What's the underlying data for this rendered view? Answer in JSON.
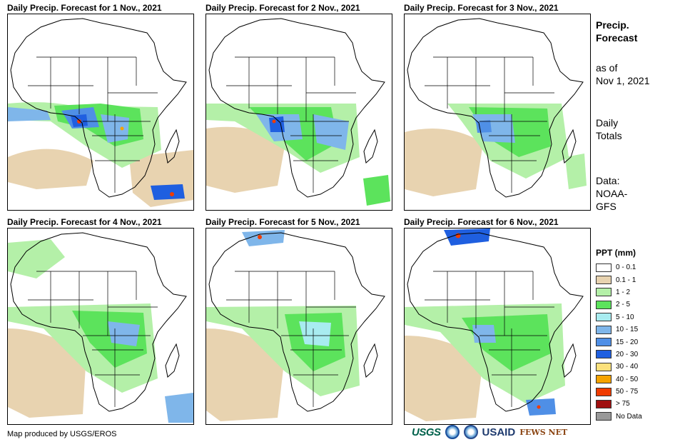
{
  "panels": [
    {
      "title": "Daily Precip. Forecast for 1 Nov., 2021",
      "day": 1
    },
    {
      "title": "Daily Precip. Forecast for 2 Nov., 2021",
      "day": 2
    },
    {
      "title": "Daily Precip. Forecast for 3 Nov., 2021",
      "day": 3
    },
    {
      "title": "Daily Precip. Forecast for 4 Nov., 2021",
      "day": 4
    },
    {
      "title": "Daily Precip. Forecast for 5 Nov., 2021",
      "day": 5
    },
    {
      "title": "Daily Precip. Forecast for 6 Nov., 2021",
      "day": 6
    }
  ],
  "side": {
    "heading_line1": "Precip.",
    "heading_line2": "Forecast",
    "asof_line1": "as of",
    "asof_line2": "Nov 1, 2021",
    "totals_line1": "Daily",
    "totals_line2": "Totals",
    "data_line1": "Data:",
    "data_line2": "NOAA-",
    "data_line3": "GFS"
  },
  "legend": {
    "title": "PPT (mm)",
    "items": [
      {
        "label": "0 - 0.1",
        "color": "#ffffff"
      },
      {
        "label": "0.1 - 1",
        "color": "#e8d3b0"
      },
      {
        "label": "1 - 2",
        "color": "#b4f0a8"
      },
      {
        "label": "2 - 5",
        "color": "#5ce35c"
      },
      {
        "label": "5 - 10",
        "color": "#a8ecf0"
      },
      {
        "label": "10 - 15",
        "color": "#7fb6ea"
      },
      {
        "label": "15 - 20",
        "color": "#4f8fe6"
      },
      {
        "label": "20 - 30",
        "color": "#1f5fe0"
      },
      {
        "label": "30 - 40",
        "color": "#fce17c"
      },
      {
        "label": "40 - 50",
        "color": "#f5a300"
      },
      {
        "label": "50 - 75",
        "color": "#f03c00"
      },
      {
        "label": "> 75",
        "color": "#a01010"
      },
      {
        "label": "No Data",
        "color": "#999999"
      }
    ]
  },
  "credit": "Map produced by USGS/EROS",
  "logos": {
    "usgs": "USGS",
    "usaid": "USAID",
    "fews": "FEWS NET"
  }
}
